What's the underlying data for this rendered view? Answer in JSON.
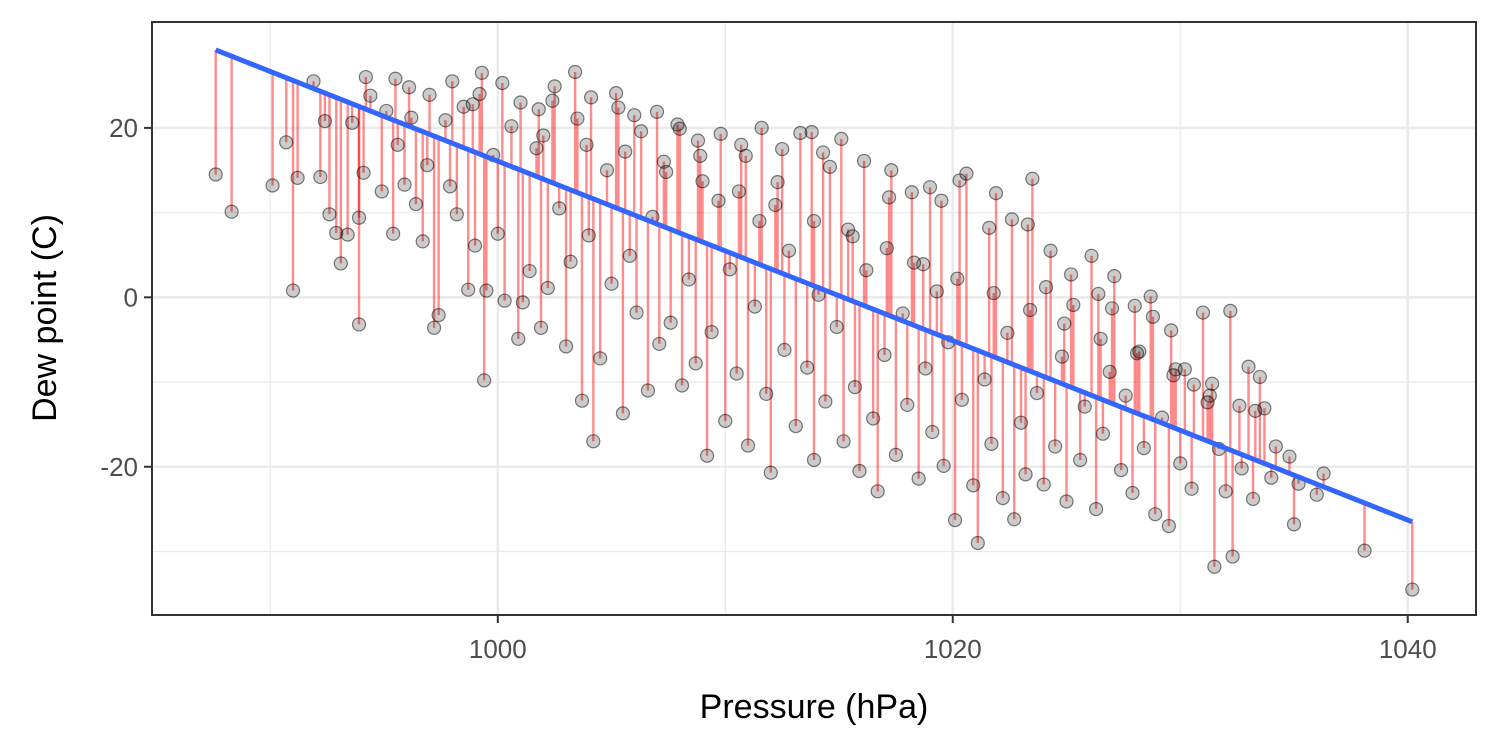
{
  "chart_data": {
    "type": "scatter",
    "title": "",
    "xlabel": "Pressure (hPa)",
    "ylabel": "Dew point (C)",
    "xlim": [
      984.8,
      1043.0
    ],
    "ylim": [
      -37.5,
      32.5
    ],
    "x_major_ticks": [
      1000,
      1020,
      1040
    ],
    "x_tick_labels": [
      "1000",
      "1020",
      "1040"
    ],
    "x_minor_ticks": [
      990,
      1010,
      1030
    ],
    "y_major_ticks": [
      -20,
      0,
      20
    ],
    "y_tick_labels": [
      "-20",
      "0",
      "20"
    ],
    "y_minor_ticks": [
      -30,
      -10,
      10
    ],
    "grid": true,
    "legend": "none",
    "fit_line": {
      "x": [
        987.6,
        1040.2
      ],
      "y": [
        29.2,
        -26.5
      ],
      "color": "#3366FF"
    },
    "residual_color": "#FF0000",
    "point_color": "#000000",
    "points": [
      {
        "x": 987.6,
        "y": 14.5
      },
      {
        "x": 988.3,
        "y": 10.1
      },
      {
        "x": 990.1,
        "y": 13.2
      },
      {
        "x": 990.7,
        "y": 18.3
      },
      {
        "x": 991.0,
        "y": 0.8
      },
      {
        "x": 991.2,
        "y": 14.1
      },
      {
        "x": 991.9,
        "y": 25.5
      },
      {
        "x": 992.2,
        "y": 14.2
      },
      {
        "x": 992.4,
        "y": 20.8
      },
      {
        "x": 992.6,
        "y": 9.8
      },
      {
        "x": 992.9,
        "y": 7.6
      },
      {
        "x": 993.1,
        "y": 4.0
      },
      {
        "x": 993.4,
        "y": 7.4
      },
      {
        "x": 993.6,
        "y": 20.6
      },
      {
        "x": 993.9,
        "y": 9.4
      },
      {
        "x": 994.1,
        "y": 14.7
      },
      {
        "x": 993.9,
        "y": -3.2
      },
      {
        "x": 994.4,
        "y": 23.8
      },
      {
        "x": 994.9,
        "y": 12.5
      },
      {
        "x": 995.1,
        "y": 22.0
      },
      {
        "x": 995.4,
        "y": 7.5
      },
      {
        "x": 995.6,
        "y": 18.0
      },
      {
        "x": 995.9,
        "y": 13.3
      },
      {
        "x": 996.1,
        "y": 24.8
      },
      {
        "x": 996.4,
        "y": 11.0
      },
      {
        "x": 996.7,
        "y": 6.6
      },
      {
        "x": 996.9,
        "y": 15.6
      },
      {
        "x": 997.2,
        "y": -3.6
      },
      {
        "x": 997.4,
        "y": -2.1
      },
      {
        "x": 997.7,
        "y": 20.9
      },
      {
        "x": 997.9,
        "y": 13.1
      },
      {
        "x": 998.2,
        "y": 9.8
      },
      {
        "x": 998.5,
        "y": 22.5
      },
      {
        "x": 998.7,
        "y": 0.9
      },
      {
        "x": 999.0,
        "y": 6.1
      },
      {
        "x": 999.2,
        "y": 24.0
      },
      {
        "x": 999.5,
        "y": 0.8
      },
      {
        "x": 999.4,
        "y": -9.8
      },
      {
        "x": 999.8,
        "y": 16.8
      },
      {
        "x": 1000.0,
        "y": 7.5
      },
      {
        "x": 1000.3,
        "y": -0.4
      },
      {
        "x": 1000.6,
        "y": 20.2
      },
      {
        "x": 1000.9,
        "y": -4.9
      },
      {
        "x": 1001.1,
        "y": -0.6
      },
      {
        "x": 1001.4,
        "y": 3.1
      },
      {
        "x": 1001.7,
        "y": 17.6
      },
      {
        "x": 1001.9,
        "y": -3.6
      },
      {
        "x": 1002.2,
        "y": 1.1
      },
      {
        "x": 1002.4,
        "y": 23.2
      },
      {
        "x": 1002.7,
        "y": 10.5
      },
      {
        "x": 1003.0,
        "y": -5.8
      },
      {
        "x": 1003.2,
        "y": 4.2
      },
      {
        "x": 1003.5,
        "y": 21.1
      },
      {
        "x": 1003.7,
        "y": -12.2
      },
      {
        "x": 1004.0,
        "y": 7.3
      },
      {
        "x": 1004.2,
        "y": -17.0
      },
      {
        "x": 1004.5,
        "y": -7.2
      },
      {
        "x": 1004.8,
        "y": 15.0
      },
      {
        "x": 1005.0,
        "y": 1.6
      },
      {
        "x": 1005.3,
        "y": 22.4
      },
      {
        "x": 1005.5,
        "y": -13.7
      },
      {
        "x": 1005.8,
        "y": 4.9
      },
      {
        "x": 1006.1,
        "y": -1.8
      },
      {
        "x": 1006.3,
        "y": 19.6
      },
      {
        "x": 1006.6,
        "y": -11.0
      },
      {
        "x": 1006.8,
        "y": 9.5
      },
      {
        "x": 1007.1,
        "y": -5.5
      },
      {
        "x": 1007.4,
        "y": 14.8
      },
      {
        "x": 1007.6,
        "y": -3.0
      },
      {
        "x": 1007.9,
        "y": 20.4
      },
      {
        "x": 1008.1,
        "y": -10.4
      },
      {
        "x": 1008.4,
        "y": 2.1
      },
      {
        "x": 1008.7,
        "y": -7.8
      },
      {
        "x": 1008.9,
        "y": 16.7
      },
      {
        "x": 1009.2,
        "y": -18.7
      },
      {
        "x": 1009.4,
        "y": -4.1
      },
      {
        "x": 1009.7,
        "y": 11.4
      },
      {
        "x": 1010.0,
        "y": -14.6
      },
      {
        "x": 1010.2,
        "y": 3.3
      },
      {
        "x": 1010.5,
        "y": -9.0
      },
      {
        "x": 1010.7,
        "y": 18.0
      },
      {
        "x": 1011.0,
        "y": -17.5
      },
      {
        "x": 1011.3,
        "y": -1.1
      },
      {
        "x": 1011.5,
        "y": 9.0
      },
      {
        "x": 1011.8,
        "y": -11.4
      },
      {
        "x": 1012.0,
        "y": -20.7
      },
      {
        "x": 1012.3,
        "y": 13.6
      },
      {
        "x": 1012.6,
        "y": -6.2
      },
      {
        "x": 1012.8,
        "y": 5.5
      },
      {
        "x": 1013.1,
        "y": -15.2
      },
      {
        "x": 1013.3,
        "y": 19.4
      },
      {
        "x": 1013.6,
        "y": -8.3
      },
      {
        "x": 1013.9,
        "y": -19.2
      },
      {
        "x": 1014.1,
        "y": 0.3
      },
      {
        "x": 1014.4,
        "y": -12.3
      },
      {
        "x": 1014.6,
        "y": 15.4
      },
      {
        "x": 1014.9,
        "y": -3.5
      },
      {
        "x": 1015.2,
        "y": -17.0
      },
      {
        "x": 1015.4,
        "y": 8.0
      },
      {
        "x": 1015.7,
        "y": -10.6
      },
      {
        "x": 1015.9,
        "y": -20.5
      },
      {
        "x": 1016.2,
        "y": 3.2
      },
      {
        "x": 1016.5,
        "y": -14.3
      },
      {
        "x": 1016.7,
        "y": -22.9
      },
      {
        "x": 1017.0,
        "y": -6.8
      },
      {
        "x": 1017.2,
        "y": 11.8
      },
      {
        "x": 1017.5,
        "y": -18.6
      },
      {
        "x": 1017.8,
        "y": -1.9
      },
      {
        "x": 1018.0,
        "y": -12.7
      },
      {
        "x": 1018.3,
        "y": 4.1
      },
      {
        "x": 1018.5,
        "y": -21.4
      },
      {
        "x": 1018.8,
        "y": -8.4
      },
      {
        "x": 1019.1,
        "y": -15.9
      },
      {
        "x": 1019.3,
        "y": 0.7
      },
      {
        "x": 1019.6,
        "y": -19.9
      },
      {
        "x": 1019.8,
        "y": -5.3
      },
      {
        "x": 1020.1,
        "y": -26.3
      },
      {
        "x": 1020.4,
        "y": -12.1
      },
      {
        "x": 1020.6,
        "y": 14.6
      },
      {
        "x": 1020.9,
        "y": -22.2
      },
      {
        "x": 1021.1,
        "y": -29.0
      },
      {
        "x": 1021.4,
        "y": -9.7
      },
      {
        "x": 1021.7,
        "y": -17.3
      },
      {
        "x": 1021.9,
        "y": 12.3
      },
      {
        "x": 1022.2,
        "y": -23.7
      },
      {
        "x": 1022.4,
        "y": -4.2
      },
      {
        "x": 1022.7,
        "y": -26.2
      },
      {
        "x": 1023.0,
        "y": -14.8
      },
      {
        "x": 1023.2,
        "y": -20.9
      },
      {
        "x": 1023.5,
        "y": 14.0
      },
      {
        "x": 1023.7,
        "y": -11.3
      },
      {
        "x": 1024.0,
        "y": -22.1
      },
      {
        "x": 1024.3,
        "y": 5.5
      },
      {
        "x": 1024.5,
        "y": -17.6
      },
      {
        "x": 1024.8,
        "y": -7.0
      },
      {
        "x": 1025.0,
        "y": -24.1
      },
      {
        "x": 1025.3,
        "y": -0.9
      },
      {
        "x": 1025.6,
        "y": -19.2
      },
      {
        "x": 1025.8,
        "y": -12.9
      },
      {
        "x": 1026.1,
        "y": 4.9
      },
      {
        "x": 1026.3,
        "y": -25.0
      },
      {
        "x": 1026.6,
        "y": -16.1
      },
      {
        "x": 1026.9,
        "y": -8.8
      },
      {
        "x": 1027.1,
        "y": 2.5
      },
      {
        "x": 1027.4,
        "y": -20.4
      },
      {
        "x": 1027.6,
        "y": -11.6
      },
      {
        "x": 1027.9,
        "y": -23.1
      },
      {
        "x": 1028.2,
        "y": -6.4
      },
      {
        "x": 1028.4,
        "y": -17.8
      },
      {
        "x": 1028.7,
        "y": 0.1
      },
      {
        "x": 1028.9,
        "y": -25.6
      },
      {
        "x": 1029.2,
        "y": -14.2
      },
      {
        "x": 1029.5,
        "y": -27.0
      },
      {
        "x": 1029.7,
        "y": -9.2
      },
      {
        "x": 1030.0,
        "y": -19.6
      },
      {
        "x": 1030.2,
        "y": -8.5
      },
      {
        "x": 1030.5,
        "y": -22.6
      },
      {
        "x": 1031.0,
        "y": -1.8
      },
      {
        "x": 1031.2,
        "y": -12.4
      },
      {
        "x": 1031.5,
        "y": -31.8
      },
      {
        "x": 1031.7,
        "y": -17.9
      },
      {
        "x": 1032.0,
        "y": -22.9
      },
      {
        "x": 1032.2,
        "y": -1.6
      },
      {
        "x": 1032.3,
        "y": -30.6
      },
      {
        "x": 1032.7,
        "y": -20.2
      },
      {
        "x": 1033.0,
        "y": -8.2
      },
      {
        "x": 1033.2,
        "y": -23.8
      },
      {
        "x": 1033.5,
        "y": -9.4
      },
      {
        "x": 1033.7,
        "y": -13.1
      },
      {
        "x": 1034.0,
        "y": -21.3
      },
      {
        "x": 1035.0,
        "y": -26.8
      },
      {
        "x": 1035.2,
        "y": -22.0
      },
      {
        "x": 1036.0,
        "y": -23.3
      },
      {
        "x": 1036.3,
        "y": -20.8
      },
      {
        "x": 1038.1,
        "y": -29.9
      },
      {
        "x": 1040.2,
        "y": -34.5
      },
      {
        "x": 1000.2,
        "y": 25.3
      },
      {
        "x": 1001.0,
        "y": 23.0
      },
      {
        "x": 1001.8,
        "y": 22.2
      },
      {
        "x": 1002.5,
        "y": 24.9
      },
      {
        "x": 1003.4,
        "y": 26.6
      },
      {
        "x": 1004.1,
        "y": 23.6
      },
      {
        "x": 1005.2,
        "y": 24.1
      },
      {
        "x": 1006.0,
        "y": 21.5
      },
      {
        "x": 1007.0,
        "y": 21.9
      },
      {
        "x": 1008.0,
        "y": 19.9
      },
      {
        "x": 1008.8,
        "y": 18.5
      },
      {
        "x": 1009.8,
        "y": 19.3
      },
      {
        "x": 1010.9,
        "y": 16.7
      },
      {
        "x": 1011.6,
        "y": 20.0
      },
      {
        "x": 1012.5,
        "y": 17.5
      },
      {
        "x": 1013.8,
        "y": 19.5
      },
      {
        "x": 1014.3,
        "y": 17.1
      },
      {
        "x": 1015.1,
        "y": 18.7
      },
      {
        "x": 1016.1,
        "y": 16.1
      },
      {
        "x": 1017.3,
        "y": 15.0
      },
      {
        "x": 1018.2,
        "y": 12.4
      },
      {
        "x": 1019.0,
        "y": 13.0
      },
      {
        "x": 1019.5,
        "y": 11.4
      },
      {
        "x": 1020.3,
        "y": 13.8
      },
      {
        "x": 1021.6,
        "y": 8.2
      },
      {
        "x": 1022.6,
        "y": 9.2
      },
      {
        "x": 1023.3,
        "y": 8.6
      },
      {
        "x": 1024.1,
        "y": 1.2
      },
      {
        "x": 1025.2,
        "y": 2.7
      },
      {
        "x": 1026.4,
        "y": 0.4
      },
      {
        "x": 1027.0,
        "y": -1.3
      },
      {
        "x": 1028.0,
        "y": -1.0
      },
      {
        "x": 1028.8,
        "y": -2.3
      },
      {
        "x": 1029.6,
        "y": -3.9
      },
      {
        "x": 1030.6,
        "y": -10.3
      },
      {
        "x": 1031.3,
        "y": -11.6
      },
      {
        "x": 1032.6,
        "y": -12.8
      },
      {
        "x": 1033.3,
        "y": -13.4
      },
      {
        "x": 1034.2,
        "y": -17.6
      },
      {
        "x": 1034.8,
        "y": -18.8
      },
      {
        "x": 997.0,
        "y": 23.9
      },
      {
        "x": 995.5,
        "y": 25.8
      },
      {
        "x": 998.0,
        "y": 25.5
      },
      {
        "x": 999.3,
        "y": 26.5
      },
      {
        "x": 994.2,
        "y": 26.0
      },
      {
        "x": 996.2,
        "y": 21.2
      },
      {
        "x": 998.9,
        "y": 22.8
      },
      {
        "x": 1002.0,
        "y": 19.1
      },
      {
        "x": 1003.9,
        "y": 18.0
      },
      {
        "x": 1005.6,
        "y": 17.2
      },
      {
        "x": 1007.3,
        "y": 16.0
      },
      {
        "x": 1009.0,
        "y": 13.7
      },
      {
        "x": 1010.6,
        "y": 12.5
      },
      {
        "x": 1012.2,
        "y": 10.9
      },
      {
        "x": 1013.9,
        "y": 9.0
      },
      {
        "x": 1015.6,
        "y": 7.2
      },
      {
        "x": 1017.1,
        "y": 5.8
      },
      {
        "x": 1018.7,
        "y": 3.9
      },
      {
        "x": 1020.2,
        "y": 2.2
      },
      {
        "x": 1021.8,
        "y": 0.5
      },
      {
        "x": 1023.4,
        "y": -1.5
      },
      {
        "x": 1024.9,
        "y": -3.1
      },
      {
        "x": 1026.5,
        "y": -4.9
      },
      {
        "x": 1028.1,
        "y": -6.6
      },
      {
        "x": 1029.8,
        "y": -8.5
      },
      {
        "x": 1031.4,
        "y": -10.2
      }
    ]
  }
}
